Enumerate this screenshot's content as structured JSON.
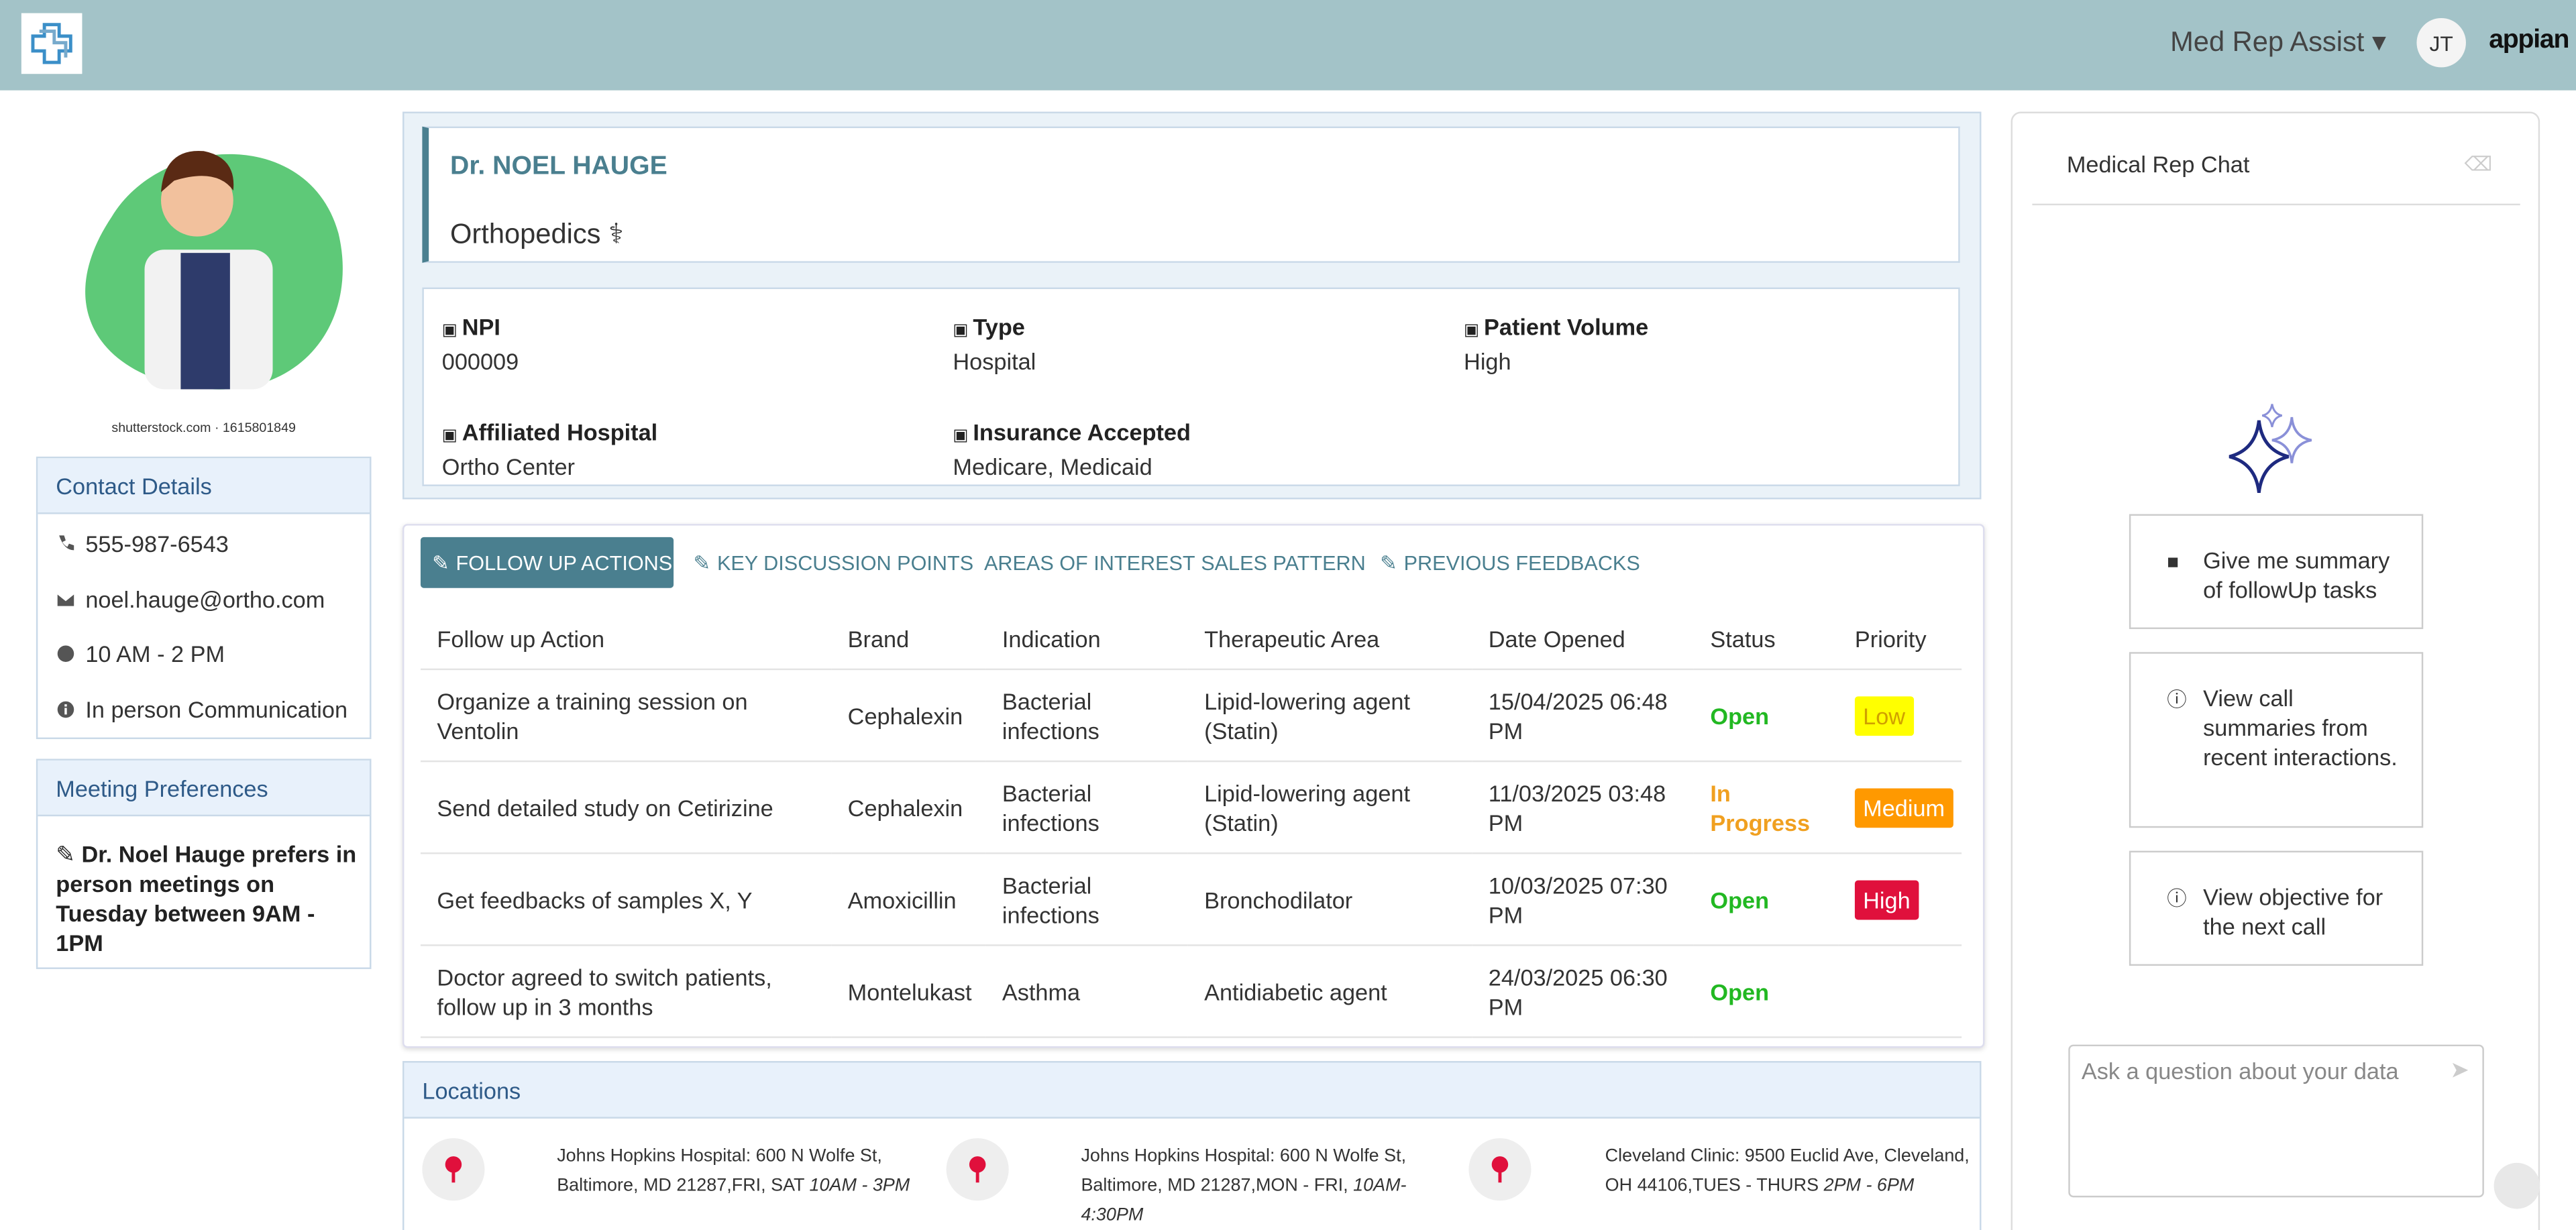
{
  "header": {
    "app_name": "Med Rep Assist",
    "user_initials": "JT",
    "brand": "appian"
  },
  "profile": {
    "image_credit": "shutterstock.com · 1615801849",
    "contact": {
      "title": "Contact Details",
      "items": [
        "555-987-6543",
        "noel.hauge@ortho.com",
        "10 AM - 2 PM",
        "In person Communication"
      ]
    },
    "meeting": {
      "title": "Meeting Preferences",
      "text": "Dr. Noel Hauge prefers in person meetings on Tuesday between 9AM - 1PM"
    }
  },
  "doctor": {
    "name": "Dr. NOEL HAUGE",
    "specialty": "Orthopedics",
    "fields": [
      {
        "label": "NPI",
        "value": "000009"
      },
      {
        "label": "Type",
        "value": "Hospital"
      },
      {
        "label": "Patient Volume",
        "value": "High"
      },
      {
        "label": "Affiliated Hospital",
        "value": "Ortho Center"
      },
      {
        "label": "Insurance Accepted",
        "value": "Medicare, Medicaid"
      }
    ]
  },
  "tabs": [
    "FOLLOW UP ACTIONS",
    "KEY DISCUSSION POINTS",
    "AREAS OF INTEREST",
    "SALES PATTERN",
    "PREVIOUS FEEDBACKS"
  ],
  "table": {
    "columns": [
      "Follow up Action",
      "Brand",
      "Indication",
      "Therapeutic Area",
      "Date Opened",
      "Status",
      "Priority"
    ],
    "rows": [
      [
        "Organize a training session on Ventolin",
        "Cephalexin",
        "Bacterial infections",
        "Lipid-lowering agent (Statin)",
        "15/04/2025 06:48 PM",
        "Open",
        "Low"
      ],
      [
        "Send detailed study on Cetirizine",
        "Cephalexin",
        "Bacterial infections",
        "Lipid-lowering agent (Statin)",
        "11/03/2025 03:48 PM",
        "In Progress",
        "Medium"
      ],
      [
        "Get feedbacks of samples X, Y",
        "Amoxicillin",
        "Bacterial infections",
        "Bronchodilator",
        "10/03/2025 07:30 PM",
        "Open",
        "High"
      ],
      [
        "Doctor agreed to switch patients, follow up in 3 months",
        "Montelukast",
        "Asthma",
        "Antidiabetic agent",
        "24/03/2025 06:30 PM",
        "Open",
        null
      ]
    ],
    "status_colors": [
      "#22b822",
      "#f0a020",
      "#22b822",
      "#22b822"
    ],
    "priority_colors": [
      "#ffff00",
      "#ff9900",
      "#e0103c",
      null
    ],
    "priority_text_colors": [
      "#d0a000",
      "#ffffff",
      "#ffffff",
      null
    ]
  },
  "locations": {
    "title": "Locations",
    "items": [
      {
        "address": "Johns Hopkins Hospital: 600 N Wolfe St, Baltimore, MD 21287,FRI, SAT",
        "time": "10AM - 3PM"
      },
      {
        "address": "Johns Hopkins Hospital: 600 N Wolfe St, Baltimore, MD 21287,MON - FRI,",
        "time": "10AM-4:30PM"
      },
      {
        "address": "Cleveland Clinic: 9500 Euclid Ave, Cleveland, OH 44106,TUES - THURS",
        "time": "2PM - 6PM"
      }
    ]
  },
  "chat": {
    "title": "Medical Rep Chat",
    "suggestions": [
      "Give me summary of followUp tasks",
      "View call summaries from recent interactions.",
      "View objective for the next call"
    ],
    "placeholder": "Ask a question about your data"
  }
}
